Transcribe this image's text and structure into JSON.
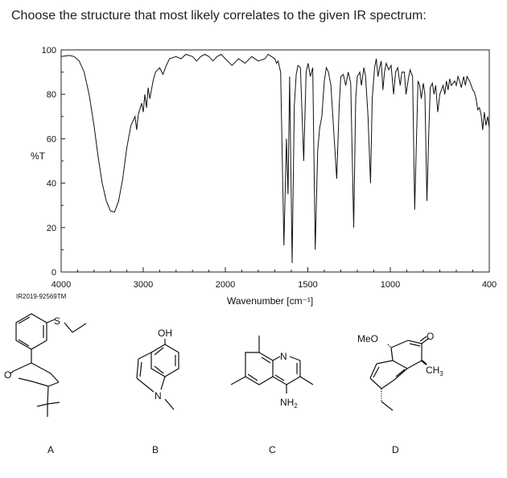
{
  "question": "Choose the structure that most likely correlates to the given IR spectrum:",
  "spectrum_code": "IR2019-92569TM",
  "chart_data": {
    "type": "line",
    "title": "",
    "xlabel": "Wavenumber [cm⁻¹]",
    "ylabel": "%T",
    "xlim": [
      4000,
      400
    ],
    "ylim": [
      0,
      100
    ],
    "x_ticks": [
      4000,
      3000,
      2000,
      1500,
      1000,
      400
    ],
    "y_ticks": [
      0,
      20,
      40,
      60,
      80,
      100
    ],
    "grid": false,
    "series": [
      {
        "color": "#111111",
        "points": [
          [
            4000,
            97
          ],
          [
            3900,
            97.5
          ],
          [
            3840,
            97
          ],
          [
            3780,
            95
          ],
          [
            3720,
            90
          ],
          [
            3660,
            80
          ],
          [
            3600,
            66
          ],
          [
            3550,
            52
          ],
          [
            3500,
            40
          ],
          [
            3450,
            32
          ],
          [
            3400,
            27.5
          ],
          [
            3350,
            27
          ],
          [
            3300,
            32
          ],
          [
            3250,
            42
          ],
          [
            3200,
            56
          ],
          [
            3150,
            66
          ],
          [
            3100,
            70
          ],
          [
            3080,
            64
          ],
          [
            3060,
            71
          ],
          [
            3020,
            76
          ],
          [
            3000,
            72
          ],
          [
            2980,
            80
          ],
          [
            2960,
            74
          ],
          [
            2940,
            83
          ],
          [
            2920,
            78
          ],
          [
            2880,
            86
          ],
          [
            2850,
            90
          ],
          [
            2800,
            92
          ],
          [
            2760,
            89
          ],
          [
            2720,
            93
          ],
          [
            2680,
            96
          ],
          [
            2600,
            97
          ],
          [
            2540,
            96
          ],
          [
            2480,
            98
          ],
          [
            2400,
            97
          ],
          [
            2350,
            95
          ],
          [
            2300,
            97
          ],
          [
            2250,
            98
          ],
          [
            2200,
            97
          ],
          [
            2150,
            95
          ],
          [
            2100,
            97
          ],
          [
            2050,
            98
          ],
          [
            2000,
            96
          ],
          [
            1960,
            93
          ],
          [
            1920,
            96
          ],
          [
            1880,
            94
          ],
          [
            1840,
            97
          ],
          [
            1800,
            95
          ],
          [
            1760,
            96
          ],
          [
            1740,
            98
          ],
          [
            1720,
            97
          ],
          [
            1700,
            96
          ],
          [
            1690,
            94
          ],
          [
            1680,
            95
          ],
          [
            1665,
            90
          ],
          [
            1645,
            12
          ],
          [
            1630,
            60
          ],
          [
            1620,
            35
          ],
          [
            1610,
            88
          ],
          [
            1595,
            4
          ],
          [
            1582,
            75
          ],
          [
            1570,
            89
          ],
          [
            1560,
            93
          ],
          [
            1545,
            92
          ],
          [
            1525,
            50
          ],
          [
            1510,
            90
          ],
          [
            1498,
            94
          ],
          [
            1485,
            88
          ],
          [
            1470,
            92
          ],
          [
            1455,
            10
          ],
          [
            1440,
            55
          ],
          [
            1428,
            65
          ],
          [
            1415,
            70
          ],
          [
            1400,
            86
          ],
          [
            1388,
            92
          ],
          [
            1375,
            90
          ],
          [
            1360,
            84
          ],
          [
            1340,
            60
          ],
          [
            1325,
            42
          ],
          [
            1310,
            75
          ],
          [
            1300,
            88
          ],
          [
            1285,
            89
          ],
          [
            1270,
            84
          ],
          [
            1255,
            90
          ],
          [
            1240,
            85
          ],
          [
            1222,
            20
          ],
          [
            1210,
            78
          ],
          [
            1200,
            88
          ],
          [
            1185,
            90
          ],
          [
            1175,
            84
          ],
          [
            1160,
            92
          ],
          [
            1150,
            88
          ],
          [
            1135,
            70
          ],
          [
            1120,
            40
          ],
          [
            1110,
            78
          ],
          [
            1095,
            92
          ],
          [
            1085,
            96
          ],
          [
            1075,
            88
          ],
          [
            1065,
            92
          ],
          [
            1055,
            95
          ],
          [
            1045,
            82
          ],
          [
            1035,
            90
          ],
          [
            1025,
            94
          ],
          [
            1010,
            91
          ],
          [
            995,
            93
          ],
          [
            980,
            80
          ],
          [
            968,
            90
          ],
          [
            955,
            92
          ],
          [
            940,
            84
          ],
          [
            930,
            90
          ],
          [
            915,
            90
          ],
          [
            905,
            80
          ],
          [
            890,
            87
          ],
          [
            880,
            91
          ],
          [
            865,
            88
          ],
          [
            852,
            28
          ],
          [
            842,
            58
          ],
          [
            832,
            86
          ],
          [
            822,
            84
          ],
          [
            812,
            78
          ],
          [
            800,
            85
          ],
          [
            790,
            80
          ],
          [
            778,
            32
          ],
          [
            768,
            60
          ],
          [
            758,
            83
          ],
          [
            745,
            85
          ],
          [
            735,
            80
          ],
          [
            725,
            84
          ],
          [
            712,
            72
          ],
          [
            700,
            80
          ],
          [
            690,
            82
          ],
          [
            680,
            84
          ],
          [
            670,
            80
          ],
          [
            660,
            86
          ],
          [
            650,
            82
          ],
          [
            640,
            87
          ],
          [
            630,
            84
          ],
          [
            620,
            85
          ],
          [
            610,
            86
          ],
          [
            600,
            84
          ],
          [
            590,
            88
          ],
          [
            580,
            86
          ],
          [
            570,
            83
          ],
          [
            555,
            88
          ],
          [
            545,
            84
          ],
          [
            535,
            88
          ],
          [
            520,
            86
          ],
          [
            510,
            84
          ],
          [
            500,
            82
          ],
          [
            490,
            81
          ],
          [
            480,
            78
          ],
          [
            470,
            73
          ],
          [
            460,
            74
          ],
          [
            450,
            71
          ],
          [
            440,
            64
          ],
          [
            430,
            72
          ],
          [
            420,
            66
          ],
          [
            410,
            70
          ],
          [
            400,
            65
          ]
        ]
      }
    ]
  },
  "structures": {
    "A": {
      "label": "A",
      "atoms": {
        "s": "S",
        "o": "O"
      }
    },
    "B": {
      "label": "B",
      "atoms": {
        "oh": "OH",
        "n": "N"
      }
    },
    "C": {
      "label": "C",
      "atoms": {
        "n": "N",
        "nh2": "NH",
        "nh2_sub": "2"
      }
    },
    "D": {
      "label": "D",
      "atoms": {
        "meo": "MeO",
        "o": "O",
        "ch3": "CH",
        "ch3_sub": "3"
      }
    }
  }
}
